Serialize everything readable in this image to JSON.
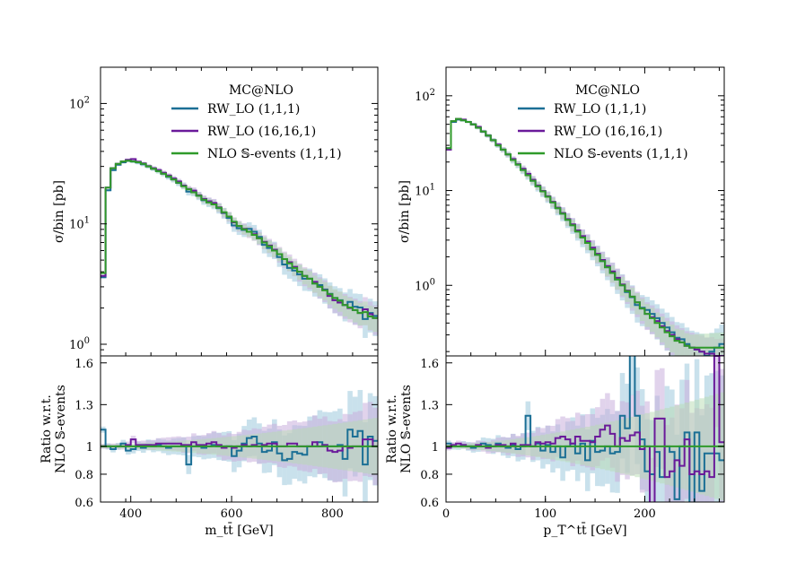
{
  "colors": {
    "rw_lo_111": "#1b6f95",
    "rw_lo_16161": "#6a1a9a",
    "nlo_s_events": "#2f9a2a",
    "band_111": "#9cc9dc",
    "band_16161": "#c9aedc",
    "band_nlo": "#b7dcb2"
  },
  "chart_data": [
    {
      "type": "step",
      "panel": "left-main",
      "ylabel": "σ/bin [pb]",
      "yscale": "log",
      "ylim": [
        0.8,
        200
      ],
      "xlim": [
        340,
        890
      ],
      "yticks": [
        {
          "value": 1,
          "label": "10",
          "exp": "0"
        },
        {
          "value": 10,
          "label": "10",
          "exp": "1"
        },
        {
          "value": 100,
          "label": "10",
          "exp": "2"
        }
      ],
      "legend": {
        "title": "MC@NLO",
        "placement": "top-right",
        "entries": [
          "RW_LO (1,1,1)",
          "RW_LO (16,16,1)",
          "NLO 𝕊-events (1,1,1)"
        ]
      },
      "bin_edges": [
        340,
        350,
        360,
        370,
        380,
        390,
        400,
        410,
        420,
        430,
        440,
        450,
        460,
        470,
        480,
        490,
        500,
        510,
        520,
        530,
        540,
        550,
        560,
        570,
        580,
        590,
        600,
        610,
        620,
        630,
        640,
        650,
        660,
        670,
        680,
        690,
        700,
        710,
        720,
        730,
        740,
        750,
        760,
        770,
        780,
        790,
        800,
        810,
        820,
        830,
        840,
        850,
        860,
        870,
        880,
        890
      ],
      "series": [
        {
          "name": "RW_LO (1,1,1)",
          "color_key": "rw_lo_111",
          "values": [
            3.6,
            19,
            28,
            31,
            32.5,
            33.5,
            33,
            32.3,
            31.2,
            30,
            28.7,
            27.4,
            26.1,
            24.6,
            23.4,
            21.9,
            20.7,
            18.5,
            18.3,
            17.1,
            15.7,
            15.1,
            14.6,
            13.5,
            12.3,
            11.2,
            9.7,
            9.2,
            8.9,
            9.1,
            8.6,
            7.8,
            6.7,
            6.3,
            6.1,
            5.3,
            4.6,
            4.3,
            4.1,
            3.8,
            3.5,
            3.5,
            3.2,
            3.1,
            2.85,
            2.62,
            2.42,
            2.32,
            2.12,
            2.25,
            2.05,
            2.02,
            1.62,
            1.82,
            1.72
          ]
        },
        {
          "name": "RW_LO (16,16,1)",
          "color_key": "rw_lo_16161",
          "values": [
            3.7,
            20,
            29,
            31.5,
            33,
            34,
            34.5,
            32.8,
            31.8,
            30.2,
            29,
            28,
            26.6,
            25.2,
            23.8,
            22.5,
            20.8,
            19.5,
            18.9,
            17.3,
            16.1,
            15.4,
            14.9,
            13.7,
            12.4,
            11.5,
            10.3,
            9.6,
            9.1,
            8.6,
            8.2,
            7.6,
            7.1,
            6.6,
            6.1,
            5.6,
            5.1,
            4.8,
            4.4,
            4.0,
            3.7,
            3.5,
            3.3,
            3.0,
            2.82,
            2.52,
            2.32,
            2.22,
            2.12,
            2.0,
            1.92,
            1.82,
            1.95,
            1.78,
            1.65
          ]
        },
        {
          "name": "NLO 𝕊-events (1,1,1)",
          "color_key": "nlo_s_events",
          "values": [
            3.9,
            20,
            29,
            31.5,
            33,
            33.5,
            33,
            32.5,
            31.5,
            30,
            28.7,
            27.4,
            26.1,
            24.8,
            23.4,
            22,
            20.5,
            19.4,
            18.3,
            17.1,
            15.9,
            15.1,
            14.5,
            13.6,
            12.5,
            11.5,
            10.4,
            9.6,
            9.0,
            8.6,
            8.1,
            7.6,
            7.0,
            6.5,
            6.0,
            5.6,
            5.1,
            4.7,
            4.3,
            4.0,
            3.7,
            3.5,
            3.2,
            3.0,
            2.8,
            2.6,
            2.42,
            2.3,
            2.12,
            2.02,
            1.92,
            1.82,
            1.85,
            1.7,
            1.65
          ]
        }
      ]
    },
    {
      "type": "step",
      "panel": "left-ratio",
      "xlabel": "m_tt̄ [GeV]",
      "ylabel_lines": [
        "Ratio w.r.t.",
        "NLO 𝕊-events"
      ],
      "ylim": [
        0.6,
        1.65
      ],
      "xlim": [
        340,
        890
      ],
      "xticks": [
        400,
        600,
        800
      ],
      "yticks": [
        0.6,
        0.8,
        1,
        1.3,
        1.6
      ],
      "bin_edges": [
        340,
        350,
        360,
        370,
        380,
        390,
        400,
        410,
        420,
        430,
        440,
        450,
        460,
        470,
        480,
        490,
        500,
        510,
        520,
        530,
        540,
        550,
        560,
        570,
        580,
        590,
        600,
        610,
        620,
        630,
        640,
        650,
        660,
        670,
        680,
        690,
        700,
        710,
        720,
        730,
        740,
        750,
        760,
        770,
        780,
        790,
        800,
        810,
        820,
        830,
        840,
        850,
        860,
        870,
        880,
        890
      ],
      "series": [
        {
          "name": "RW_LO (1,1,1)",
          "color_key": "rw_lo_111",
          "values": [
            1.12,
            1.0,
            0.98,
            1.0,
            1.02,
            0.97,
            0.98,
            1.0,
            0.99,
            1.01,
            1.0,
            1.01,
            1.0,
            0.99,
            1.0,
            1.0,
            1.0,
            0.87,
            1.0,
            1.0,
            0.99,
            1.0,
            1.01,
            1.0,
            1.0,
            1.0,
            0.93,
            0.97,
            1.02,
            1.06,
            1.07,
            1.02,
            0.96,
            0.97,
            1.03,
            0.95,
            0.9,
            0.91,
            0.96,
            0.95,
            0.94,
            1.0,
            1.0,
            1.03,
            1.01,
            1.0,
            1.0,
            1.01,
            0.91,
            1.12,
            1.07,
            1.11,
            0.87,
            1.07,
            1.04
          ]
        },
        {
          "name": "RW_LO (16,16,1)",
          "color_key": "rw_lo_16161",
          "values": [
            1.0,
            1.0,
            1.0,
            1.0,
            1.0,
            1.01,
            1.05,
            1.01,
            1.01,
            1.01,
            1.01,
            1.02,
            1.02,
            1.02,
            1.02,
            1.02,
            1.01,
            1.01,
            1.03,
            1.01,
            1.01,
            1.02,
            1.03,
            1.01,
            0.99,
            1.0,
            0.99,
            1.0,
            1.01,
            1.0,
            1.01,
            1.0,
            1.01,
            1.02,
            1.02,
            1.0,
            1.0,
            1.02,
            1.02,
            1.0,
            1.0,
            1.0,
            1.03,
            1.0,
            1.01,
            0.97,
            0.96,
            0.97,
            1.0,
            0.99,
            1.0,
            1.0,
            1.05,
            1.05,
            1.0
          ]
        }
      ]
    },
    {
      "type": "step",
      "panel": "right-main",
      "ylabel": "σ/bin [pb]",
      "yscale": "log",
      "ylim": [
        0.18,
        200
      ],
      "xlim": [
        0,
        280
      ],
      "yticks": [
        {
          "value": 1,
          "label": "10",
          "exp": "0"
        },
        {
          "value": 10,
          "label": "10",
          "exp": "1"
        },
        {
          "value": 100,
          "label": "10",
          "exp": "2"
        }
      ],
      "legend": {
        "title": "MC@NLO",
        "placement": "top-right",
        "entries": [
          "RW_LO (1,1,1)",
          "RW_LO (16,16,1)",
          "NLO 𝕊-events (1,1,1)"
        ]
      },
      "bin_edges": [
        0,
        5,
        10,
        15,
        20,
        25,
        30,
        35,
        40,
        45,
        50,
        55,
        60,
        65,
        70,
        75,
        80,
        85,
        90,
        95,
        100,
        105,
        110,
        115,
        120,
        125,
        130,
        135,
        140,
        145,
        150,
        155,
        160,
        165,
        170,
        175,
        180,
        185,
        190,
        195,
        200,
        205,
        210,
        215,
        220,
        225,
        230,
        235,
        240,
        245,
        250,
        255,
        260,
        265,
        270,
        275,
        280
      ],
      "series": [
        {
          "name": "RW_LO (1,1,1)",
          "color_key": "rw_lo_111",
          "values": [
            28,
            53,
            56,
            55,
            53,
            50,
            46,
            42,
            38,
            34,
            30,
            27,
            24,
            21,
            18.8,
            16.5,
            14.5,
            12.7,
            11.1,
            9.8,
            8.6,
            7.5,
            6.5,
            5.7,
            4.9,
            4.3,
            3.7,
            3.2,
            2.8,
            2.4,
            2.1,
            1.8,
            1.55,
            1.35,
            1.15,
            1.0,
            0.85,
            0.75,
            0.62,
            0.58,
            0.55,
            0.5,
            0.45,
            0.4,
            0.36,
            0.32,
            0.28,
            0.27,
            0.24,
            0.22,
            0.21,
            0.2,
            0.18,
            0.2,
            0.22,
            0.24
          ]
        },
        {
          "name": "RW_LO (16,16,1)",
          "color_key": "rw_lo_16161",
          "values": [
            27,
            54,
            57,
            56,
            53,
            50,
            47,
            42,
            38,
            34,
            30.5,
            27,
            24,
            21.5,
            19,
            17,
            15,
            13,
            11.3,
            9.9,
            8.7,
            7.6,
            6.6,
            5.8,
            5.0,
            4.4,
            3.8,
            3.3,
            2.9,
            2.5,
            2.15,
            1.85,
            1.6,
            1.4,
            1.2,
            1.02,
            0.88,
            0.76,
            0.66,
            0.57,
            0.5,
            0.46,
            0.42,
            0.37,
            0.33,
            0.3,
            0.27,
            0.25,
            0.23,
            0.22,
            0.21,
            0.2,
            0.19,
            0.19,
            0.18,
            0.18
          ]
        },
        {
          "name": "NLO 𝕊-events (1,1,1)",
          "color_key": "nlo_s_events",
          "values": [
            28,
            54,
            57,
            55,
            53,
            50,
            46,
            42,
            38,
            34,
            30,
            27,
            24,
            21,
            18.8,
            16.5,
            14.5,
            12.7,
            11.1,
            9.8,
            8.6,
            7.5,
            6.5,
            5.7,
            4.9,
            4.3,
            3.7,
            3.2,
            2.8,
            2.4,
            2.1,
            1.8,
            1.55,
            1.35,
            1.15,
            1.0,
            0.87,
            0.76,
            0.66,
            0.57,
            0.5,
            0.45,
            0.4,
            0.36,
            0.32,
            0.29,
            0.26,
            0.25,
            0.23,
            0.22,
            0.22,
            0.22,
            0.22,
            0.22,
            0.22,
            0.22
          ]
        }
      ]
    },
    {
      "type": "step",
      "panel": "right-ratio",
      "xlabel": "p_T^tt̄ [GeV]",
      "ylabel_lines": [
        "Ratio w.r.t.",
        "NLO 𝕊-events"
      ],
      "ylim": [
        0.6,
        1.65
      ],
      "xlim": [
        0,
        280
      ],
      "xticks": [
        0,
        100,
        200
      ],
      "yticks": [
        0.6,
        0.8,
        1,
        1.3,
        1.6
      ],
      "bin_edges": [
        0,
        5,
        10,
        15,
        20,
        25,
        30,
        35,
        40,
        45,
        50,
        55,
        60,
        65,
        70,
        75,
        80,
        85,
        90,
        95,
        100,
        105,
        110,
        115,
        120,
        125,
        130,
        135,
        140,
        145,
        150,
        155,
        160,
        165,
        170,
        175,
        180,
        185,
        190,
        195,
        200,
        205,
        210,
        215,
        220,
        225,
        230,
        235,
        240,
        245,
        250,
        255,
        260,
        265,
        270,
        275,
        280
      ],
      "series": [
        {
          "name": "RW_LO (1,1,1)",
          "color_key": "rw_lo_111",
          "values": [
            1.02,
            1.0,
            1.0,
            1.01,
            1.0,
            0.99,
            1.0,
            1.02,
            1.01,
            1.0,
            1.02,
            1.0,
            0.99,
            1.01,
            0.98,
            1.0,
            1.22,
            1.0,
            1.02,
            0.97,
            1.01,
            0.96,
            1.0,
            0.92,
            1.0,
            1.02,
            0.95,
            1.02,
            0.9,
            1.04,
            0.96,
            0.97,
            1.0,
            0.95,
            0.96,
            1.22,
            1.13,
            1.7,
            1.22,
            1.05,
            0.82,
            0.8,
            0.96,
            0.78,
            1.0,
            0.96,
            0.62,
            1.0,
            1.1,
            0.59,
            1.1,
            0.68,
            0.95,
            0.95,
            0.95,
            0.9
          ]
        },
        {
          "name": "RW_LO (16,16,1)",
          "color_key": "rw_lo_16161",
          "values": [
            0.99,
            1.01,
            1.02,
            1.01,
            1.0,
            1.0,
            1.01,
            1.0,
            0.99,
            1.0,
            1.01,
            1.01,
            1.0,
            1.02,
            1.0,
            1.01,
            1.01,
            1.0,
            1.03,
            1.02,
            1.03,
            1.02,
            1.06,
            1.07,
            1.05,
            1.02,
            1.07,
            1.04,
            1.04,
            1.03,
            1.07,
            1.12,
            1.15,
            1.09,
            1.0,
            1.06,
            1.04,
            1.08,
            1.1,
            0.98,
            1.0,
            0.58,
            1.2,
            1.2,
            0.78,
            0.82,
            0.9,
            0.86,
            1.05,
            0.8,
            0.82,
            0.8,
            0.82,
            0.78,
            1.65,
            1.03
          ]
        }
      ]
    }
  ]
}
